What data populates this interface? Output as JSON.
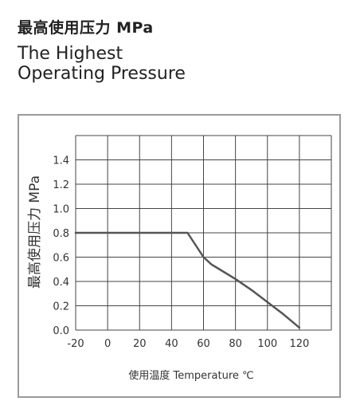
{
  "header": {
    "title_cn": "最高使用压力 MPa",
    "title_en_line1": "The Highest",
    "title_en_line2": "Operating Pressure"
  },
  "chart_data": {
    "type": "line",
    "title": "",
    "xlabel": "使用温度 Temperature ℃",
    "ylabel": "最高使用压力 MPa",
    "xlim": [
      -20,
      140
    ],
    "ylim": [
      0,
      1.6
    ],
    "x_ticks": [
      "-20",
      "0",
      "20",
      "40",
      "60",
      "80",
      "100",
      "120"
    ],
    "y_ticks": [
      "0.0",
      "0.2",
      "0.4",
      "0.6",
      "0.8",
      "1.0",
      "1.2",
      "1.4"
    ],
    "grid": true,
    "series": [
      {
        "color": "#555555",
        "x": [
          -20,
          50,
          55,
          60,
          65,
          70,
          80,
          90,
          100,
          110,
          120
        ],
        "y": [
          0.8,
          0.8,
          0.7,
          0.6,
          0.54,
          0.5,
          0.42,
          0.33,
          0.23,
          0.13,
          0.02
        ]
      }
    ]
  }
}
